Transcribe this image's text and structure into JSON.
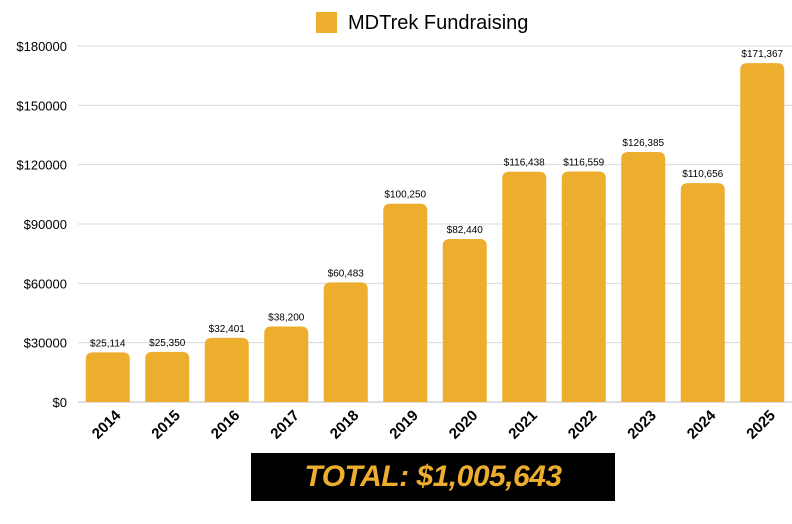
{
  "chart_data": {
    "type": "bar",
    "categories": [
      "2014",
      "2015",
      "2016",
      "2017",
      "2018",
      "2019",
      "2020",
      "2021",
      "2022",
      "2023",
      "2024",
      "2025"
    ],
    "series": [
      {
        "name": "MDTrek Fundraising",
        "values": [
          25114,
          25350,
          32401,
          38200,
          60483,
          100250,
          82440,
          116438,
          116559,
          126385,
          110656,
          171367
        ],
        "labels": [
          "$25,114",
          "$25,350",
          "$32,401",
          "$38,200",
          "$60,483",
          "$100,250",
          "$82,440",
          "$116,438",
          "$116,559",
          "$126,385",
          "$110,656",
          "$171,367"
        ],
        "color": "#EDAE2E"
      }
    ],
    "ylim": [
      0,
      180000
    ],
    "yticks": [
      0,
      30000,
      60000,
      90000,
      120000,
      150000,
      180000
    ],
    "ytick_labels": [
      "$0",
      "$30000",
      "$60000",
      "$90000",
      "$120000",
      "$150000",
      "$180000"
    ],
    "grid": true,
    "legend": "top-center",
    "xlabel": "",
    "ylabel": ""
  },
  "total": {
    "label": "TOTAL: $1,005,643",
    "text_color": "#EDAE2E",
    "background": "#000000"
  }
}
